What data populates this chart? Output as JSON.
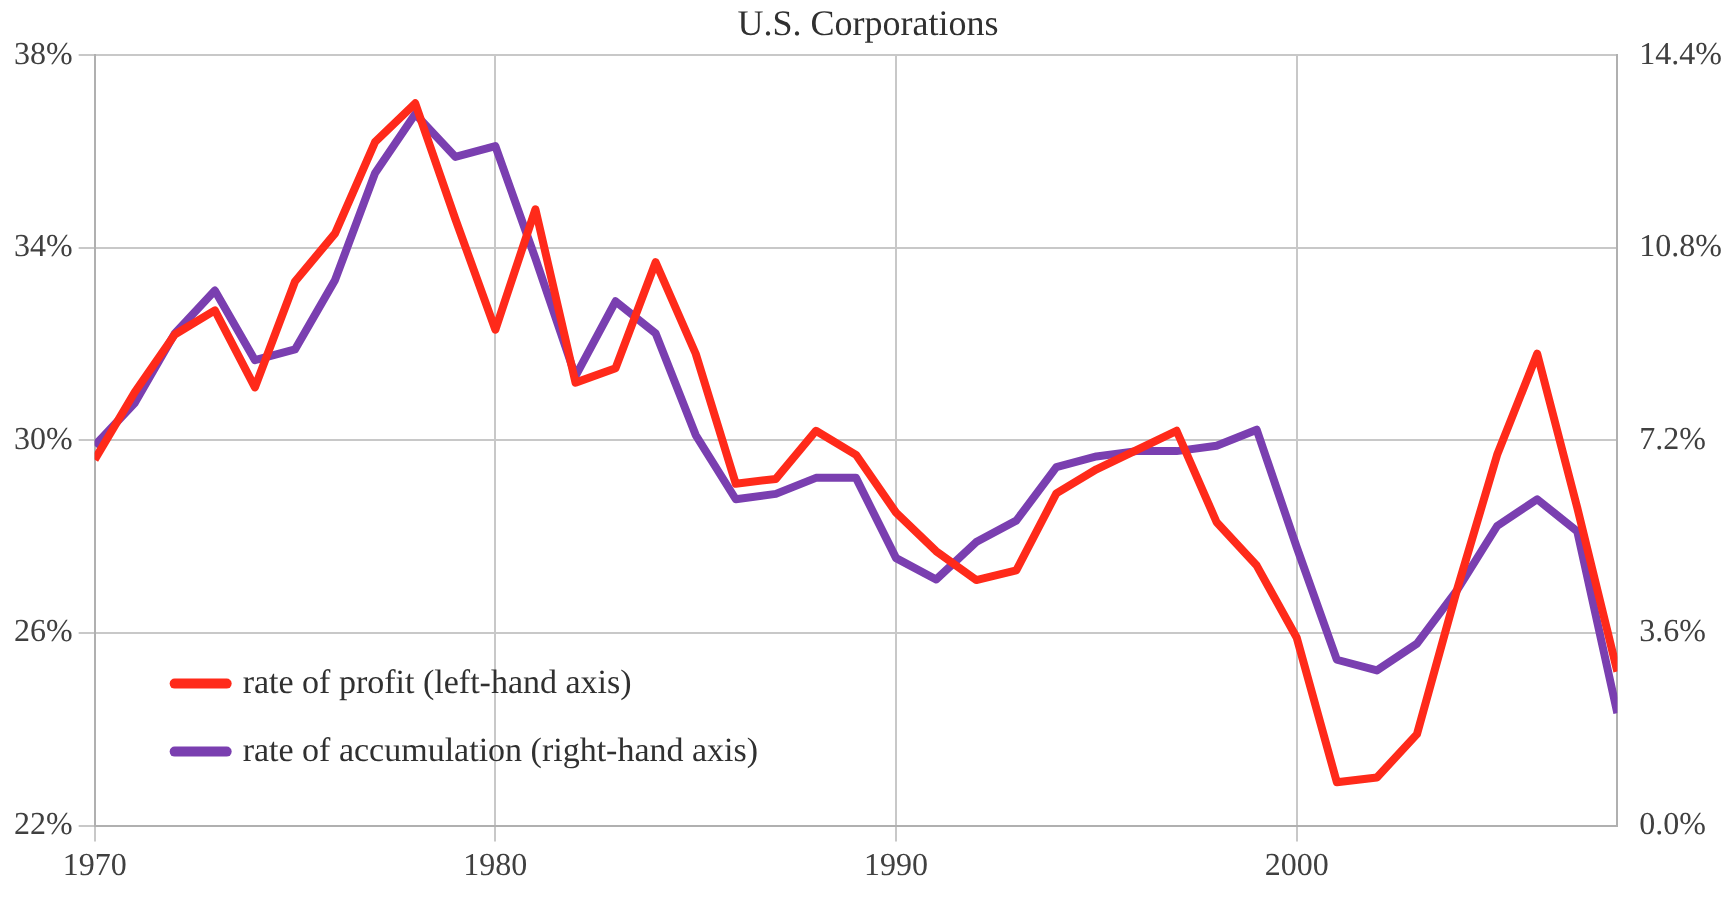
{
  "chart_data": {
    "type": "line",
    "title": "U.S. Corporations",
    "x": [
      1970,
      1971,
      1972,
      1973,
      1974,
      1975,
      1976,
      1977,
      1978,
      1979,
      1980,
      1981,
      1982,
      1983,
      1984,
      1985,
      1986,
      1987,
      1988,
      1989,
      1990,
      1991,
      1992,
      1993,
      1994,
      1995,
      1996,
      1997,
      1998,
      1999,
      2000,
      2001,
      2002,
      2003,
      2004,
      2005,
      2006,
      2007,
      2008
    ],
    "series": [
      {
        "name": "rate of profit (left-hand axis)",
        "color": "#ff2a1a",
        "values": [
          29.6,
          31.0,
          32.2,
          32.7,
          31.1,
          33.3,
          34.3,
          36.2,
          37.0,
          34.6,
          32.3,
          34.8,
          31.2,
          31.5,
          33.7,
          31.8,
          29.1,
          29.2,
          30.2,
          29.7,
          28.5,
          27.7,
          27.1,
          27.3,
          28.9,
          29.4,
          29.8,
          30.2,
          28.3,
          27.4,
          25.9,
          22.9,
          23.0,
          23.9,
          26.9,
          29.7,
          31.8,
          28.6,
          25.2
        ]
      },
      {
        "name": "rate of accumulation (right-hand axis)",
        "color": "#7a3fb0",
        "axis": "y2",
        "values": [
          7.1,
          7.9,
          9.2,
          10.0,
          8.7,
          8.9,
          10.2,
          12.2,
          13.3,
          12.5,
          12.7,
          10.6,
          8.4,
          9.8,
          9.2,
          7.3,
          6.1,
          6.2,
          6.5,
          6.5,
          5.0,
          4.6,
          5.3,
          5.7,
          6.7,
          6.9,
          7.0,
          7.0,
          7.1,
          7.4,
          5.2,
          3.1,
          2.9,
          3.4,
          4.4,
          5.6,
          6.1,
          5.5,
          2.1
        ]
      }
    ],
    "xlim": [
      1970,
      2008
    ],
    "xticks": [
      1970,
      1980,
      1990,
      2000
    ],
    "ylim": [
      22,
      38
    ],
    "yticks": [
      {
        "value": 22,
        "label": "22%"
      },
      {
        "value": 26,
        "label": "26%"
      },
      {
        "value": 30,
        "label": "30%"
      },
      {
        "value": 34,
        "label": "34%"
      },
      {
        "value": 38,
        "label": "38%"
      }
    ],
    "y2lim": [
      0,
      14.4
    ],
    "y2ticks": [
      {
        "value": 0,
        "label": "0.0%"
      },
      {
        "value": 3.6,
        "label": "3.6%"
      },
      {
        "value": 7.2,
        "label": "7.2%"
      },
      {
        "value": 10.8,
        "label": "10.8%"
      },
      {
        "value": 14.4,
        "label": "14.4%"
      }
    ],
    "grid": true,
    "legend": "bottom left",
    "marker": "none",
    "line_style": "solid"
  }
}
